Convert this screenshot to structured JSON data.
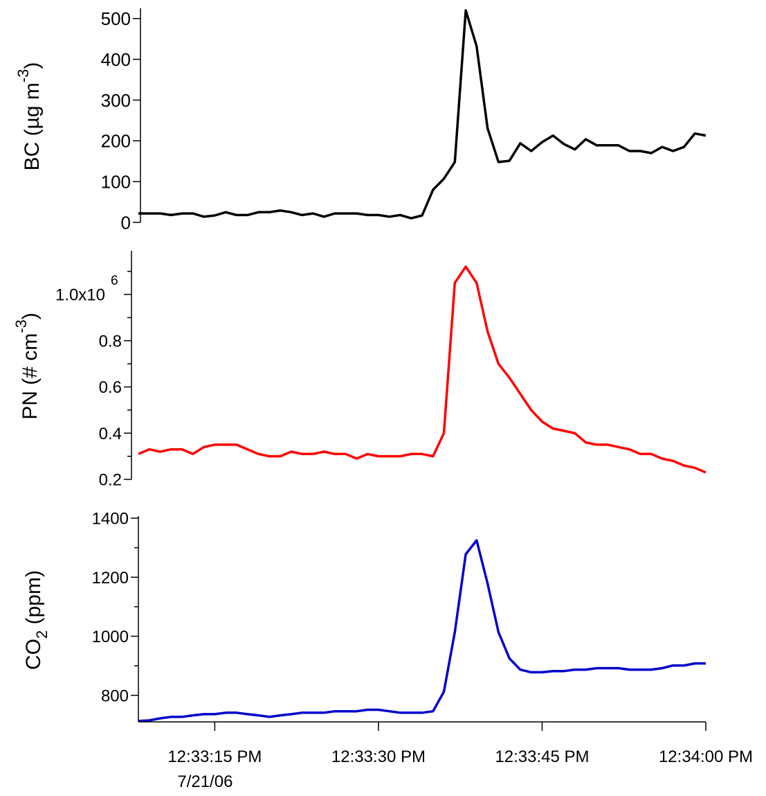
{
  "chart_data": [
    {
      "type": "line",
      "color": "#000000",
      "ylabel": [
        {
          "text": "BC (µg m"
        },
        {
          "text": "-3",
          "shift": "super"
        },
        {
          "text": ")"
        }
      ],
      "x": [
        8,
        9,
        10,
        11,
        12,
        13,
        14,
        15,
        16,
        17,
        18,
        19,
        20,
        21,
        22,
        23,
        24,
        25,
        26,
        27,
        28,
        29,
        30,
        31,
        32,
        33,
        34,
        35,
        36,
        37,
        38,
        39,
        40,
        41,
        42,
        43,
        44,
        45,
        46,
        47,
        48,
        49,
        50,
        51,
        52,
        53,
        54,
        55,
        56,
        57,
        58,
        59,
        60
      ],
      "values": [
        22,
        22,
        22,
        18,
        22,
        22,
        14,
        17,
        25,
        18,
        18,
        25,
        25,
        29,
        25,
        18,
        22,
        14,
        22,
        22,
        22,
        18,
        18,
        14,
        18,
        10,
        17,
        80,
        107,
        148,
        520,
        432,
        231,
        148,
        151,
        194,
        175,
        197,
        213,
        192,
        179,
        204,
        189,
        189,
        189,
        175,
        175,
        170,
        185,
        175,
        185,
        218,
        213
      ],
      "xlim": [
        8,
        60
      ],
      "ylim": [
        0,
        520
      ],
      "yticks": [
        0,
        100,
        200,
        300,
        400,
        500
      ]
    },
    {
      "type": "line",
      "color": "#ff0000",
      "ylabel": [
        {
          "text": "PN (# cm"
        },
        {
          "text": "-3",
          "shift": "super"
        },
        {
          "text": ")"
        }
      ],
      "x": [
        8,
        9,
        10,
        11,
        12,
        13,
        14,
        15,
        16,
        17,
        18,
        19,
        20,
        21,
        22,
        23,
        24,
        25,
        26,
        27,
        28,
        29,
        30,
        31,
        32,
        33,
        34,
        35,
        36,
        37,
        38,
        39,
        40,
        41,
        42,
        43,
        44,
        45,
        46,
        47,
        48,
        49,
        50,
        51,
        52,
        53,
        54,
        55,
        56,
        57,
        58,
        59,
        60
      ],
      "values": [
        0.31,
        0.33,
        0.32,
        0.33,
        0.33,
        0.31,
        0.34,
        0.35,
        0.35,
        0.35,
        0.33,
        0.31,
        0.3,
        0.3,
        0.32,
        0.31,
        0.31,
        0.32,
        0.31,
        0.31,
        0.29,
        0.31,
        0.3,
        0.3,
        0.3,
        0.31,
        0.31,
        0.3,
        0.4,
        1.05,
        1.12,
        1.05,
        0.84,
        0.7,
        0.64,
        0.57,
        0.5,
        0.45,
        0.42,
        0.41,
        0.4,
        0.36,
        0.35,
        0.35,
        0.34,
        0.33,
        0.31,
        0.31,
        0.29,
        0.28,
        0.26,
        0.25,
        0.23
      ],
      "xlim": [
        8,
        60
      ],
      "ylim": [
        0.2,
        1.18
      ],
      "yticks": [
        0.2,
        0.4,
        0.6,
        0.8,
        {
          "value": 1.0,
          "label": "1.0x10"
        }
      ],
      "ytick_exponent": "6",
      "yminorticks": [
        0.3,
        0.5,
        0.7,
        0.9,
        1.1
      ]
    },
    {
      "type": "line",
      "color": "#0000cc",
      "ylabel": [
        {
          "text": "CO"
        },
        {
          "text": "2",
          "shift": "sub"
        },
        {
          "text": " (ppm)"
        }
      ],
      "x": [
        8,
        9,
        10,
        11,
        12,
        13,
        14,
        15,
        16,
        17,
        18,
        19,
        20,
        21,
        22,
        23,
        24,
        25,
        26,
        27,
        28,
        29,
        30,
        31,
        32,
        33,
        34,
        35,
        36,
        37,
        38,
        39,
        40,
        41,
        42,
        43,
        44,
        45,
        46,
        47,
        48,
        49,
        50,
        51,
        52,
        53,
        54,
        55,
        56,
        57,
        58,
        59,
        60
      ],
      "values": [
        713,
        715,
        722,
        727,
        727,
        732,
        736,
        736,
        741,
        741,
        736,
        732,
        727,
        732,
        736,
        741,
        741,
        741,
        746,
        746,
        746,
        751,
        751,
        746,
        741,
        741,
        741,
        746,
        812,
        1014,
        1278,
        1325,
        1179,
        1014,
        925,
        887,
        878,
        878,
        882,
        882,
        887,
        887,
        892,
        892,
        892,
        887,
        887,
        887,
        892,
        901,
        901,
        908,
        908
      ],
      "xlim": [
        8,
        60
      ],
      "ylim": [
        710,
        1400
      ],
      "yticks": [
        800,
        1000,
        1200,
        1400
      ],
      "yminorticks": [
        900,
        1100,
        1300
      ],
      "xticks": [
        {
          "value": 15,
          "label": "12:33:15 PM"
        },
        {
          "value": 30,
          "label": "12:33:30 PM"
        },
        {
          "value": 45,
          "label": "12:33:45 PM"
        },
        {
          "value": 60,
          "label": "12:34:00 PM"
        }
      ],
      "x_date": "7/21/06"
    }
  ]
}
